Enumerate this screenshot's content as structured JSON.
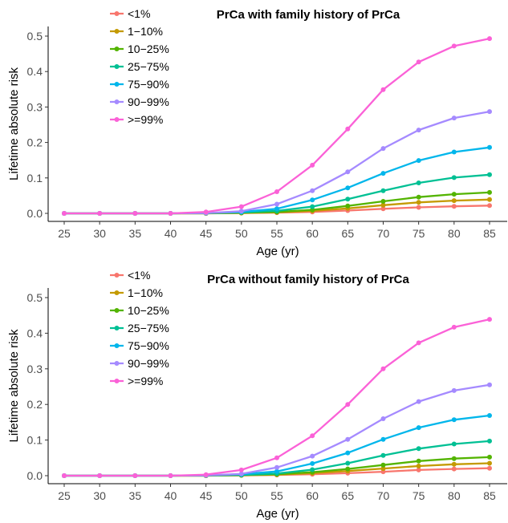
{
  "chart_data": [
    {
      "type": "line",
      "title": "PrCa with family history of PrCa",
      "xlabel": "Age (yr)",
      "ylabel": "Lifetime absolute risk",
      "x": [
        25,
        30,
        35,
        40,
        45,
        50,
        55,
        60,
        65,
        70,
        75,
        80,
        85
      ],
      "x_ticks": [
        "25",
        "30",
        "35",
        "40",
        "45",
        "50",
        "55",
        "60",
        "65",
        "70",
        "75",
        "80",
        "85"
      ],
      "y_ticks": [
        "0.0",
        "0.1",
        "0.2",
        "0.3",
        "0.4",
        "0.5"
      ],
      "ylim": [
        0,
        0.5
      ],
      "legend_position": "top-left",
      "grid": false,
      "series": [
        {
          "name": "<1%",
          "color": "#F8766D",
          "values": [
            0,
            0,
            0,
            0,
            0,
            0.001,
            0.002,
            0.004,
            0.008,
            0.013,
            0.017,
            0.02,
            0.022
          ]
        },
        {
          "name": "1−10%",
          "color": "#C49A00",
          "values": [
            0,
            0,
            0,
            0,
            0,
            0.001,
            0.003,
            0.007,
            0.014,
            0.023,
            0.031,
            0.036,
            0.039
          ]
        },
        {
          "name": "10−25%",
          "color": "#53B400",
          "values": [
            0,
            0,
            0,
            0,
            0,
            0.002,
            0.004,
            0.01,
            0.021,
            0.034,
            0.046,
            0.054,
            0.059
          ]
        },
        {
          "name": "25−75%",
          "color": "#00C094",
          "values": [
            0,
            0,
            0,
            0,
            0.001,
            0.003,
            0.007,
            0.019,
            0.04,
            0.064,
            0.086,
            0.101,
            0.109
          ]
        },
        {
          "name": "75−90%",
          "color": "#00B6EB",
          "values": [
            0,
            0,
            0,
            0,
            0.001,
            0.004,
            0.013,
            0.038,
            0.072,
            0.113,
            0.149,
            0.173,
            0.186
          ]
        },
        {
          "name": "90−99%",
          "color": "#A58AFF",
          "values": [
            0,
            0,
            0,
            0,
            0.001,
            0.006,
            0.026,
            0.064,
            0.117,
            0.183,
            0.235,
            0.269,
            0.287
          ]
        },
        {
          "name": ">=99%",
          "color": "#FB61D7",
          "values": [
            0,
            0,
            0,
            0,
            0.004,
            0.019,
            0.061,
            0.136,
            0.238,
            0.349,
            0.427,
            0.472,
            0.493
          ]
        }
      ]
    },
    {
      "type": "line",
      "title": "PrCa without family history of PrCa",
      "xlabel": "Age (yr)",
      "ylabel": "Lifetime absolute risk",
      "x": [
        25,
        30,
        35,
        40,
        45,
        50,
        55,
        60,
        65,
        70,
        75,
        80,
        85
      ],
      "x_ticks": [
        "25",
        "30",
        "35",
        "40",
        "45",
        "50",
        "55",
        "60",
        "65",
        "70",
        "75",
        "80",
        "85"
      ],
      "y_ticks": [
        "0.0",
        "0.1",
        "0.2",
        "0.3",
        "0.4",
        "0.5"
      ],
      "ylim": [
        0,
        0.5
      ],
      "legend_position": "top-left",
      "grid": false,
      "series": [
        {
          "name": "<1%",
          "color": "#F8766D",
          "values": [
            0,
            0,
            0,
            0,
            0,
            0.001,
            0.002,
            0.004,
            0.007,
            0.011,
            0.016,
            0.019,
            0.021
          ]
        },
        {
          "name": "1−10%",
          "color": "#C49A00",
          "values": [
            0,
            0,
            0,
            0,
            0,
            0.001,
            0.003,
            0.007,
            0.013,
            0.02,
            0.027,
            0.032,
            0.035
          ]
        },
        {
          "name": "10−25%",
          "color": "#53B400",
          "values": [
            0,
            0,
            0,
            0,
            0,
            0.002,
            0.004,
            0.01,
            0.019,
            0.03,
            0.041,
            0.048,
            0.052
          ]
        },
        {
          "name": "25−75%",
          "color": "#00C094",
          "values": [
            0,
            0,
            0,
            0,
            0.001,
            0.002,
            0.006,
            0.017,
            0.035,
            0.057,
            0.076,
            0.089,
            0.097
          ]
        },
        {
          "name": "75−90%",
          "color": "#00B6EB",
          "values": [
            0,
            0,
            0,
            0,
            0.001,
            0.004,
            0.012,
            0.034,
            0.064,
            0.102,
            0.135,
            0.157,
            0.169
          ]
        },
        {
          "name": "90−99%",
          "color": "#A58AFF",
          "values": [
            0,
            0,
            0,
            0,
            0.001,
            0.005,
            0.023,
            0.055,
            0.102,
            0.16,
            0.208,
            0.239,
            0.255
          ]
        },
        {
          "name": ">=99%",
          "color": "#FB61D7",
          "values": [
            0,
            0,
            0,
            0,
            0.003,
            0.016,
            0.05,
            0.112,
            0.2,
            0.3,
            0.373,
            0.417,
            0.439
          ]
        }
      ]
    }
  ]
}
